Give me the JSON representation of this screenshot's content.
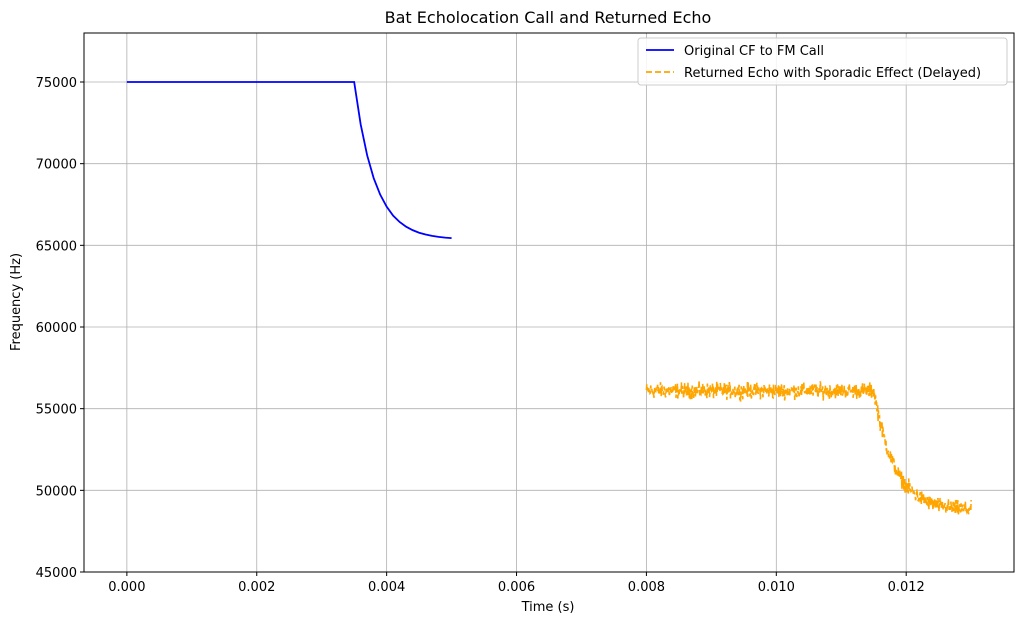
{
  "chart_data": {
    "type": "line",
    "title": "Bat Echolocation Call and Returned Echo",
    "xlabel": "Time (s)",
    "ylabel": "Frequency (Hz)",
    "xlim": [
      -0.00066,
      0.01366
    ],
    "ylim": [
      45000,
      78000
    ],
    "xticks": [
      0.0,
      0.002,
      0.004,
      0.006,
      0.008,
      0.01,
      0.012
    ],
    "xtick_labels": [
      "0.000",
      "0.002",
      "0.004",
      "0.006",
      "0.008",
      "0.010",
      "0.012"
    ],
    "yticks": [
      45000,
      50000,
      55000,
      60000,
      65000,
      70000,
      75000
    ],
    "ytick_labels": [
      "45000",
      "50000",
      "55000",
      "60000",
      "65000",
      "70000",
      "75000"
    ],
    "grid": true,
    "legend_position": "top-right",
    "series": [
      {
        "name": "Original CF to FM Call",
        "color": "#0000ff",
        "style": "solid",
        "x": [
          0.0,
          0.0005,
          0.001,
          0.0015,
          0.002,
          0.0025,
          0.003,
          0.0035,
          0.0036,
          0.0037,
          0.0038,
          0.0039,
          0.004,
          0.0041,
          0.0042,
          0.0043,
          0.0044,
          0.0045,
          0.0046,
          0.0047,
          0.0048,
          0.0049,
          0.005
        ],
        "y": [
          75000,
          75000,
          75000,
          75000,
          75000,
          75000,
          75000,
          75000,
          72410,
          70510,
          69120,
          68110,
          67370,
          66820,
          66430,
          66140,
          65930,
          65770,
          65660,
          65580,
          65520,
          65470,
          65440
        ]
      },
      {
        "name": "Returned Echo with Sporadic Effect (Delayed)",
        "color": "#ffa500",
        "style": "dashed",
        "x": [
          0.008,
          0.0085,
          0.009,
          0.0095,
          0.01,
          0.0105,
          0.011,
          0.0115,
          0.0116,
          0.0117,
          0.0118,
          0.0119,
          0.012,
          0.0121,
          0.0122,
          0.0123,
          0.0124,
          0.0125,
          0.0126,
          0.0127,
          0.0128,
          0.0129,
          0.013
        ],
        "y": [
          56100,
          56100,
          56100,
          56100,
          56100,
          56100,
          56100,
          56100,
          54130,
          52680,
          51630,
          50850,
          50290,
          49870,
          49580,
          49360,
          49190,
          49070,
          48990,
          48930,
          48880,
          48850,
          48820
        ],
        "noise_amplitude": 500
      }
    ]
  }
}
